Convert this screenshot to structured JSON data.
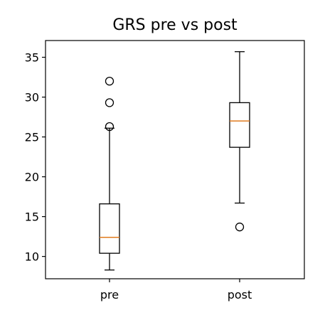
{
  "chart_data": {
    "type": "boxplot",
    "title": "GRS pre vs post",
    "xlabel": "",
    "ylabel": "",
    "categories": [
      "pre",
      "post"
    ],
    "y_ticks": [
      10,
      15,
      20,
      25,
      30,
      35
    ],
    "ylim": [
      7.2,
      37.1
    ],
    "grid": false,
    "legend": "none",
    "boxes": [
      {
        "label": "pre",
        "whisker_low": 8.3,
        "q1": 10.4,
        "median": 12.4,
        "q3": 16.6,
        "whisker_high": 26.1,
        "outliers": [
          26.3,
          29.3,
          32.0
        ]
      },
      {
        "label": "post",
        "whisker_low": 16.7,
        "q1": 23.7,
        "median": 27.0,
        "q3": 29.3,
        "whisker_high": 35.7,
        "outliers": [
          13.7
        ]
      }
    ],
    "colors": {
      "box": "#000000",
      "median": "#e07b1f",
      "outlier": "#000000"
    }
  }
}
